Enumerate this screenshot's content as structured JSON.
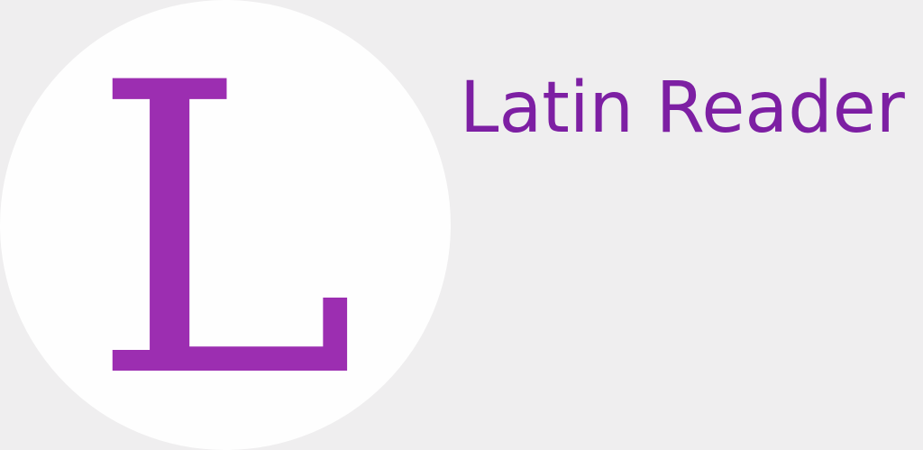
{
  "logo": {
    "letter": "L",
    "icon": "letter-l-logo",
    "circle_color": "#fefefe",
    "letter_color": "#9c2eb1"
  },
  "app": {
    "title": "Latin Reader",
    "title_color": "#7d1fa3"
  },
  "background_color": "#efeeef"
}
